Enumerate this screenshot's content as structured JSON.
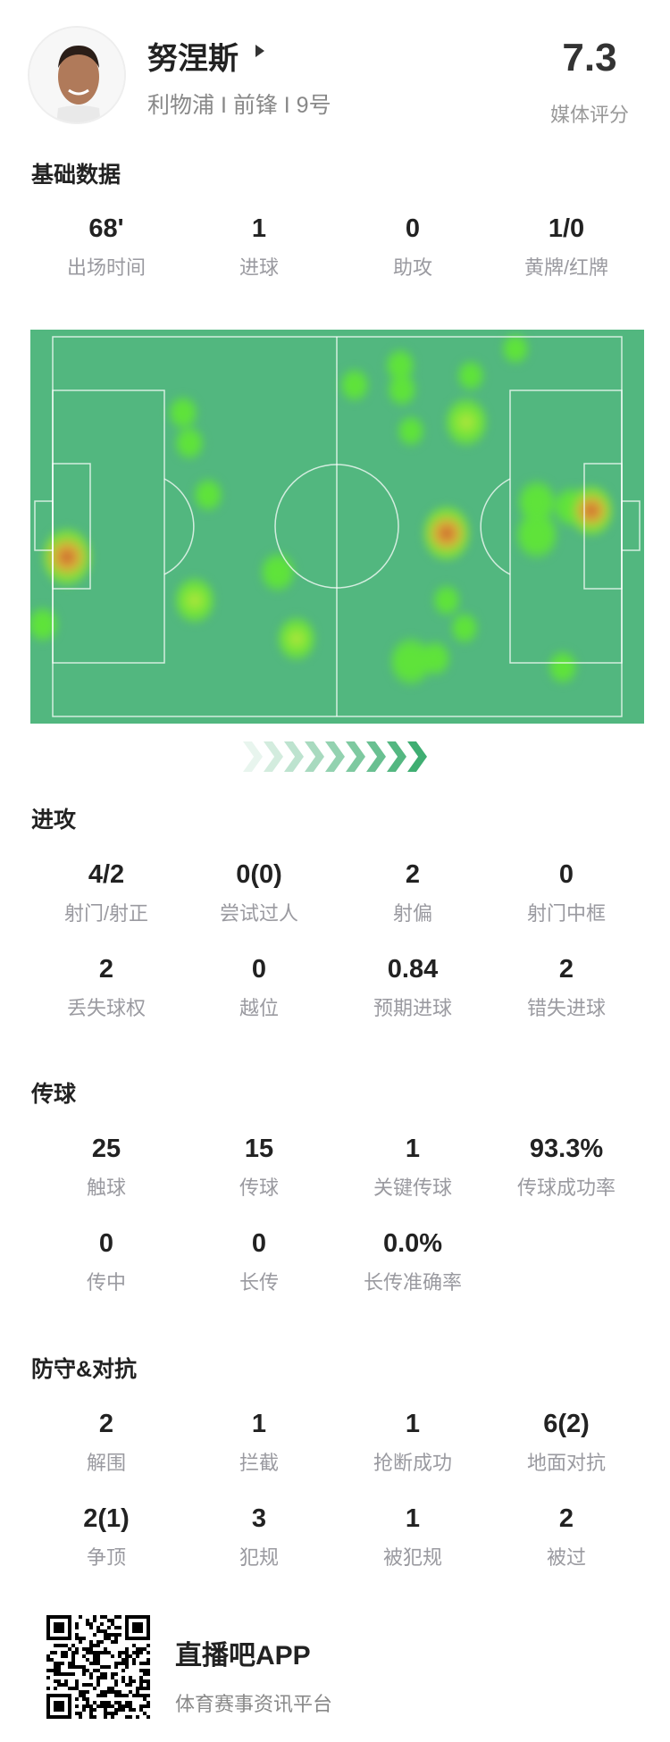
{
  "player": {
    "name": "努涅斯",
    "subtitle": "利物浦 I 前锋 I 9号",
    "rating": "7.3",
    "rating_label": "媒体评分"
  },
  "colors": {
    "pitch": "#52b77f",
    "accent": "#3fae72"
  },
  "basic": {
    "title": "基础数据",
    "stats": [
      {
        "value": "68'",
        "label": "出场时间"
      },
      {
        "value": "1",
        "label": "进球"
      },
      {
        "value": "0",
        "label": "助攻"
      },
      {
        "value": "1/0",
        "label": "黄牌/红牌"
      }
    ]
  },
  "attack": {
    "title": "进攻",
    "stats": [
      {
        "value": "4/2",
        "label": "射门/射正"
      },
      {
        "value": "0(0)",
        "label": "尝试过人"
      },
      {
        "value": "2",
        "label": "射偏"
      },
      {
        "value": "0",
        "label": "射门中框"
      },
      {
        "value": "2",
        "label": "丢失球权"
      },
      {
        "value": "0",
        "label": "越位"
      },
      {
        "value": "0.84",
        "label": "预期进球"
      },
      {
        "value": "2",
        "label": "错失进球"
      }
    ]
  },
  "passing": {
    "title": "传球",
    "stats": [
      {
        "value": "25",
        "label": "触球"
      },
      {
        "value": "15",
        "label": "传球"
      },
      {
        "value": "1",
        "label": "关键传球"
      },
      {
        "value": "93.3%",
        "label": "传球成功率"
      },
      {
        "value": "0",
        "label": "传中"
      },
      {
        "value": "0",
        "label": "长传"
      },
      {
        "value": "0.0%",
        "label": "长传准确率"
      }
    ]
  },
  "defense": {
    "title": "防守&对抗",
    "stats": [
      {
        "value": "2",
        "label": "解围"
      },
      {
        "value": "1",
        "label": "拦截"
      },
      {
        "value": "1",
        "label": "抢断成功"
      },
      {
        "value": "6(2)",
        "label": "地面对抗"
      },
      {
        "value": "2(1)",
        "label": "争顶"
      },
      {
        "value": "3",
        "label": "犯规"
      },
      {
        "value": "1",
        "label": "被犯规"
      },
      {
        "value": "2",
        "label": "被过"
      }
    ]
  },
  "footer": {
    "app_name": "直播吧APP",
    "slogan": "体育赛事资讯平台"
  }
}
